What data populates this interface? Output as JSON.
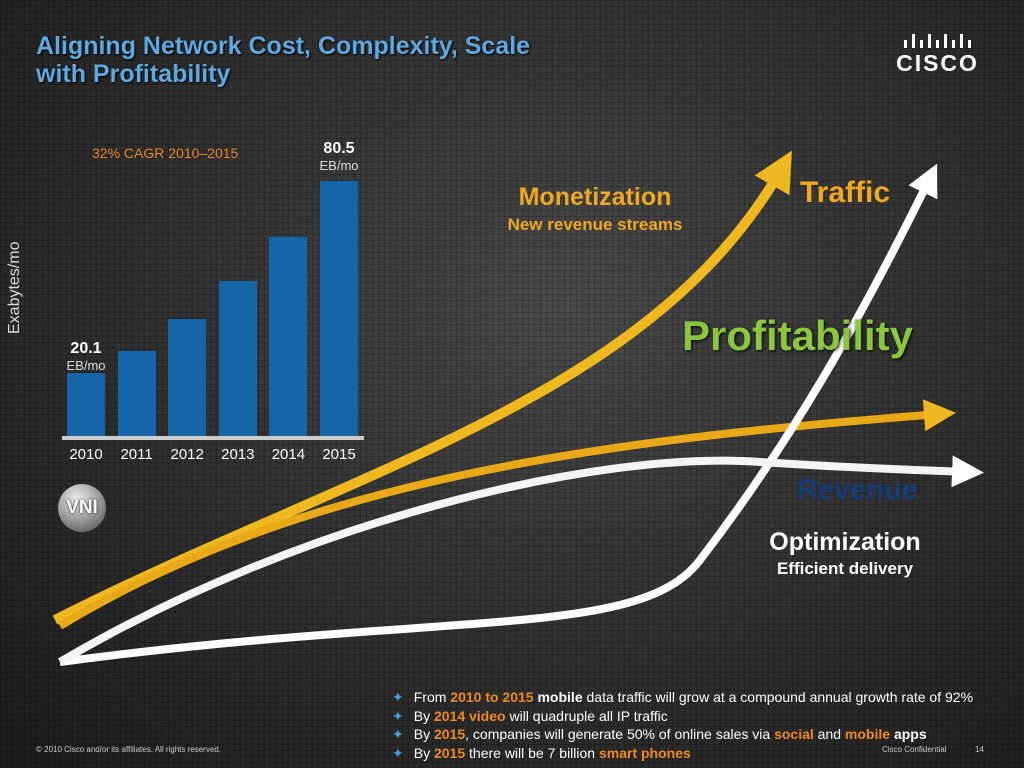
{
  "title": {
    "line1": "Aligning Network Cost, Complexity, Scale",
    "line2": "with Profitability"
  },
  "logo": {
    "text": "CISCO"
  },
  "chart_data": {
    "type": "bar",
    "title": "32% CAGR 2010–2015",
    "ylabel": "Exabytes/mo",
    "categories": [
      "2010",
      "2011",
      "2012",
      "2013",
      "2014",
      "2015"
    ],
    "values": [
      20.1,
      27,
      37,
      49,
      63,
      80.5
    ],
    "ylim": [
      0,
      80.5
    ],
    "annotations": {
      "first": {
        "value": "20.1",
        "unit": "EB/mo"
      },
      "last": {
        "value": "80.5",
        "unit": "EB/mo"
      }
    },
    "bar_color": "#1565a8"
  },
  "badge": "VNI",
  "diagram": {
    "monetization": "Monetization",
    "monetization_sub": "New revenue streams",
    "traffic": "Traffic",
    "profitability": "Profitability",
    "revenue": "Revenue",
    "optimization": "Optimization",
    "optimization_sub": "Efficient delivery"
  },
  "bullets": [
    [
      "From ",
      "2010 to 2015",
      " ",
      "mobile",
      " data traffic will grow at a compound annual growth rate of 92%"
    ],
    [
      "By ",
      "2014 video",
      " will quadruple all IP traffic"
    ],
    [
      "By ",
      "2015",
      ", companies will generate 50% of online sales via ",
      "social",
      " and ",
      "mobile",
      " ",
      "apps"
    ],
    [
      "By ",
      "2015",
      " there will be 7 billion ",
      "smart phones"
    ]
  ],
  "footer": {
    "copyright": "© 2010 Cisco and/or its affiliates. All rights reserved.",
    "confidential": "Cisco Confidential",
    "page": "14"
  }
}
